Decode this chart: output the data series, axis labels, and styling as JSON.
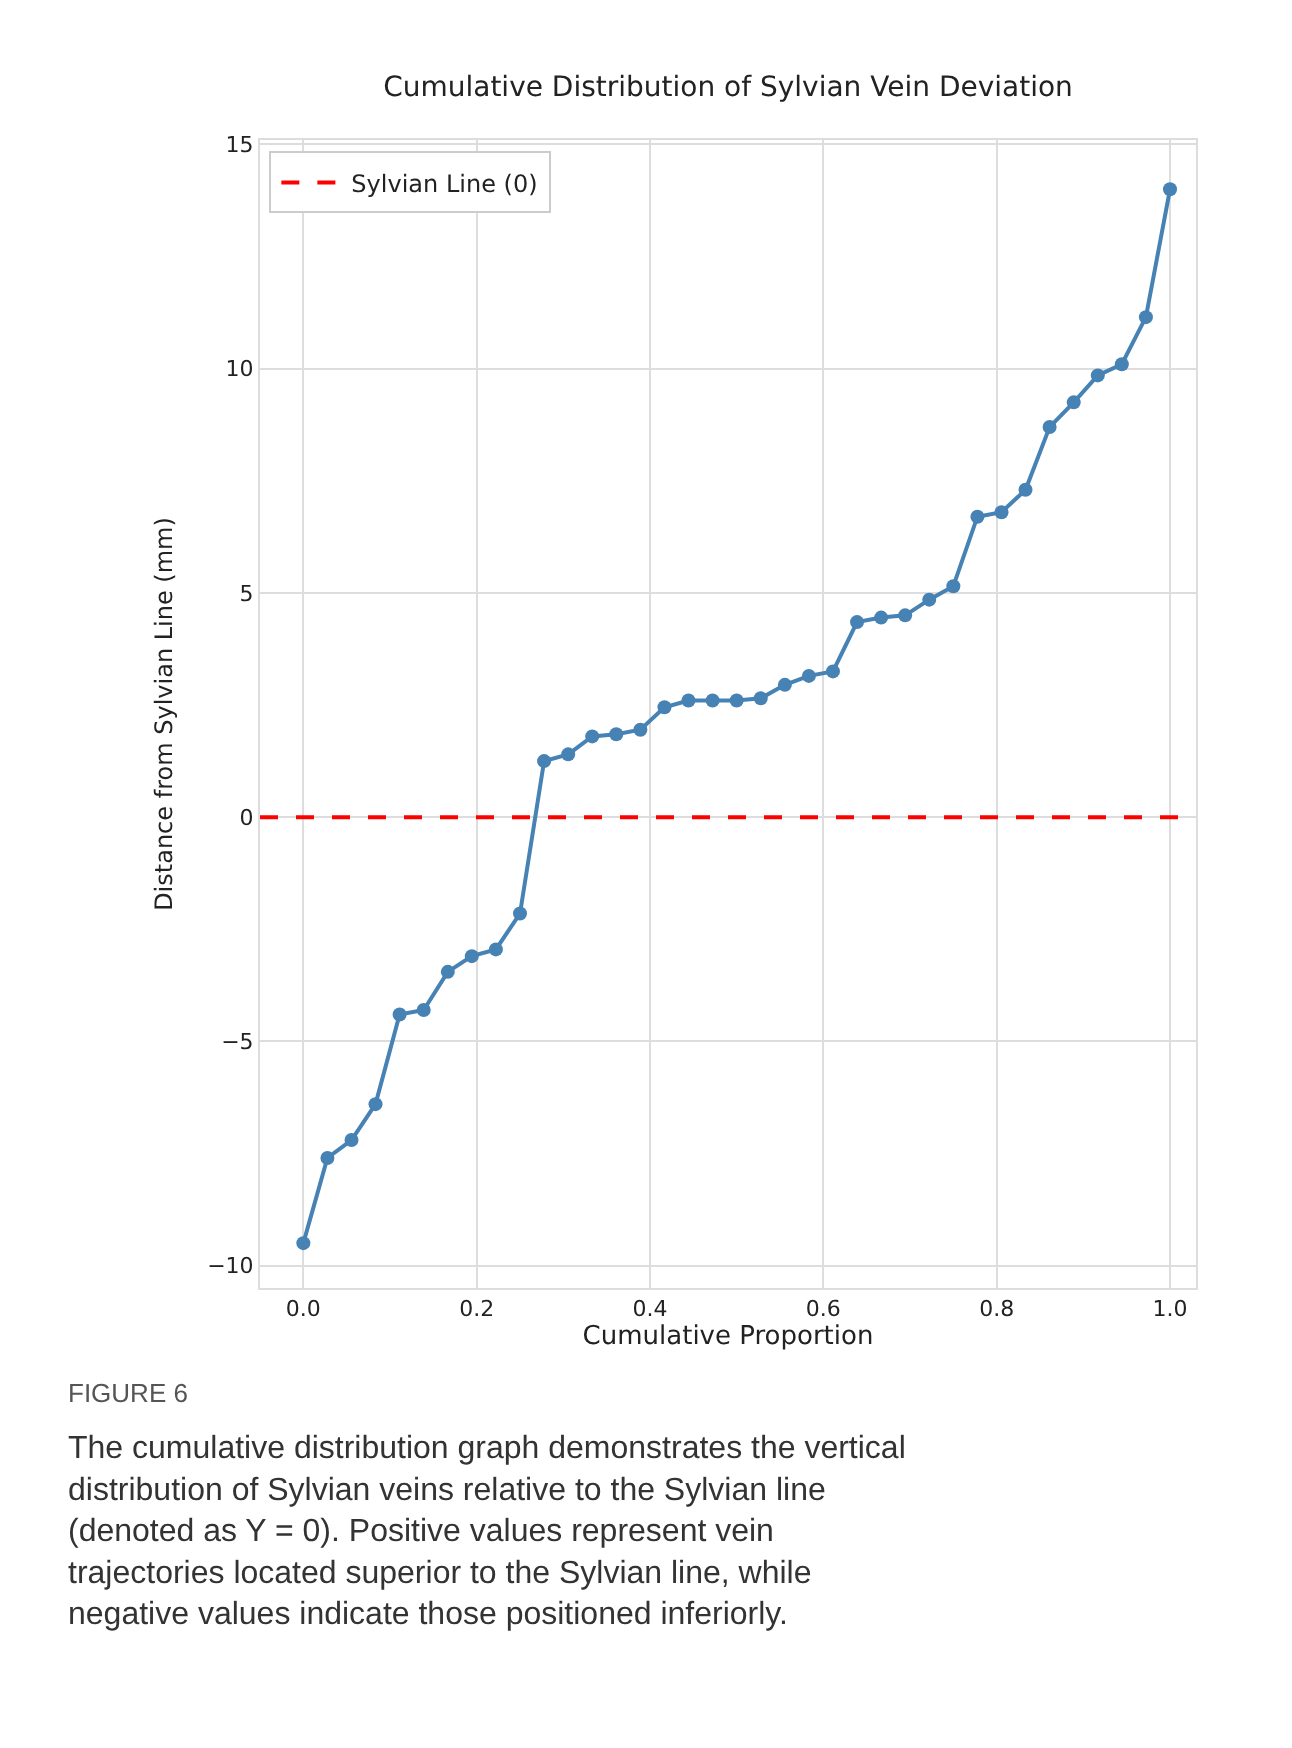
{
  "chart_data": {
    "type": "line",
    "title": "Cumulative Distribution of Sylvian Vein Deviation",
    "xlabel": "Cumulative Proportion",
    "ylabel": "Distance from Sylvian Line (mm)",
    "x": [
      0,
      0.0278,
      0.0556,
      0.0833,
      0.1111,
      0.1389,
      0.1667,
      0.1944,
      0.2222,
      0.25,
      0.2778,
      0.3056,
      0.3333,
      0.3611,
      0.3889,
      0.4167,
      0.4444,
      0.4722,
      0.5,
      0.5278,
      0.5556,
      0.5833,
      0.6111,
      0.6389,
      0.6667,
      0.6944,
      0.7222,
      0.75,
      0.7778,
      0.8056,
      0.8333,
      0.8611,
      0.8889,
      0.9167,
      0.9444,
      0.9722,
      1
    ],
    "series": [
      {
        "color": "#4682b4",
        "values": [
          -9.5,
          -7.6,
          -7.2,
          -6.4,
          -4.4,
          -4.3,
          -3.45,
          -3.1,
          -2.95,
          -2.15,
          1.25,
          1.4,
          1.8,
          1.85,
          1.95,
          2.45,
          2.6,
          2.6,
          2.6,
          2.65,
          2.95,
          3.15,
          3.25,
          4.35,
          4.45,
          4.5,
          4.85,
          5.15,
          6.7,
          6.8,
          7.3,
          8.7,
          9.25,
          9.85,
          10.1,
          11.15,
          14.0
        ]
      }
    ],
    "ref_lines": [
      {
        "axis": "y",
        "value": 0,
        "label": "Sylvian Line (0)",
        "color": "#ff0000",
        "line_style": "dashed"
      }
    ],
    "xlim": [
      -0.05,
      1.03
    ],
    "ylim": [
      -10.5,
      15.1
    ],
    "xticks": [
      {
        "value": 0,
        "label": "0.0"
      },
      {
        "value": 0.2,
        "label": "0.2"
      },
      {
        "value": 0.4,
        "label": "0.4"
      },
      {
        "value": 0.6,
        "label": "0.6"
      },
      {
        "value": 0.8,
        "label": "0.8"
      },
      {
        "value": 1,
        "label": "1.0"
      }
    ],
    "yticks": [
      {
        "value": -10,
        "label": "−10"
      },
      {
        "value": -5,
        "label": "−5"
      },
      0,
      5,
      10,
      15
    ],
    "grid": true,
    "legend": "top left",
    "marker": "circle",
    "line_style": "solid",
    "annotations": [
      "FIGURE 6",
      "The cumulative distribution graph demonstrates the vertical distribution of Sylvian veins relative to the Sylvian line (denoted as Y = 0). Positive values represent vein trajectories located superior to the Sylvian line, while negative values indicate those positioned inferiorly."
    ]
  }
}
